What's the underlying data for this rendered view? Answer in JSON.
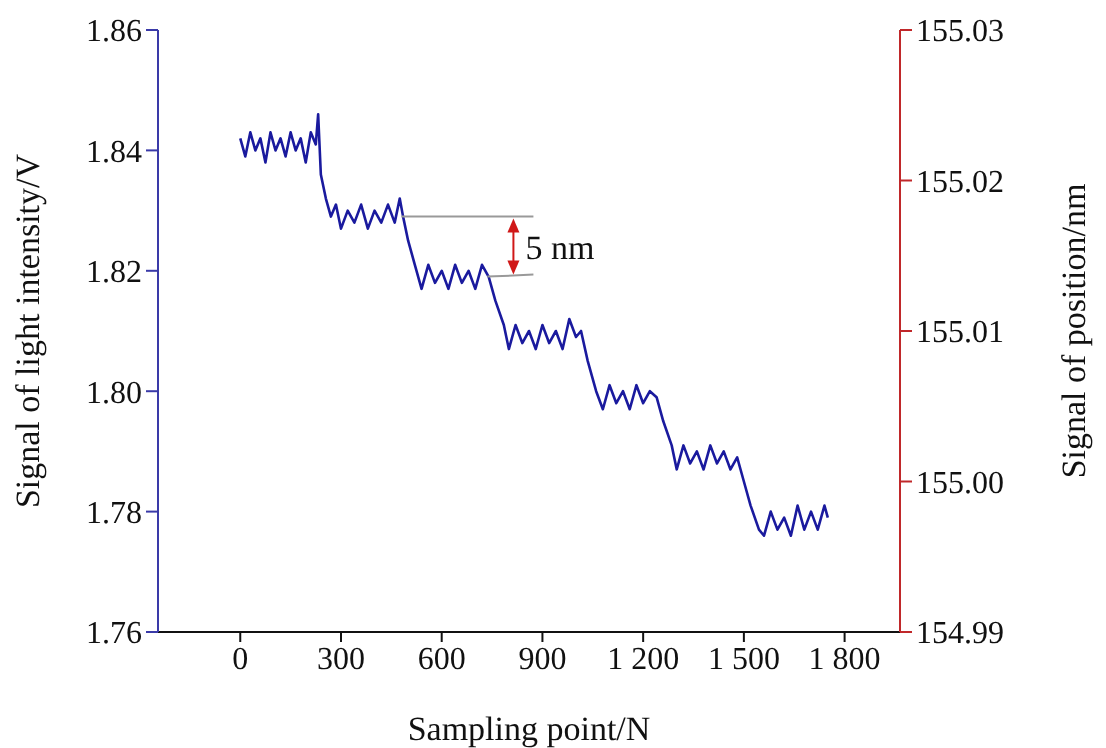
{
  "chart_data": {
    "type": "line",
    "xlabel": "Sampling point/N",
    "ylabel": "Signal of light intensity/V",
    "y2label": "Signal of position/nm",
    "xlim": [
      -245,
      1965
    ],
    "xticks": [
      0,
      300,
      600,
      900,
      {
        "value": 1200,
        "label": "1 200"
      },
      {
        "value": 1500,
        "label": "1 500"
      },
      {
        "value": 1800,
        "label": "1 800"
      }
    ],
    "ylim": [
      1.76,
      1.86
    ],
    "yticks": [
      {
        "value": 1.76,
        "label": "1.76"
      },
      {
        "value": 1.78,
        "label": "1.78"
      },
      {
        "value": 1.8,
        "label": "1.80"
      },
      {
        "value": 1.82,
        "label": "1.82"
      },
      {
        "value": 1.84,
        "label": "1.84"
      },
      {
        "value": 1.86,
        "label": "1.86"
      }
    ],
    "y2lim": [
      154.99,
      155.03
    ],
    "y2ticks": [
      154.99,
      {
        "value": 155,
        "label": "155.00"
      },
      {
        "value": 155.01,
        "label": "155.01"
      },
      {
        "value": 155.02,
        "label": "155.02"
      },
      {
        "value": 155.03,
        "label": "155.03"
      }
    ],
    "annotations": [
      {
        "text": "5 nm",
        "x": 480,
        "y": 1.829
      }
    ],
    "grid": false,
    "legend": false,
    "marker": "none",
    "line_style": "solid",
    "series": [
      {
        "color": "#1a1a9e",
        "x": [
          0,
          15,
          30,
          45,
          60,
          75,
          90,
          105,
          120,
          135,
          150,
          165,
          180,
          195,
          210,
          225,
          232,
          240,
          255,
          270,
          285,
          300,
          320,
          340,
          360,
          380,
          400,
          420,
          440,
          460,
          475,
          485,
          500,
          520,
          540,
          560,
          580,
          600,
          620,
          640,
          660,
          680,
          700,
          720,
          740,
          760,
          785,
          800,
          820,
          840,
          860,
          880,
          900,
          920,
          940,
          960,
          980,
          1000,
          1015,
          1035,
          1060,
          1080,
          1100,
          1120,
          1140,
          1160,
          1180,
          1200,
          1220,
          1240,
          1260,
          1285,
          1300,
          1320,
          1340,
          1360,
          1380,
          1400,
          1420,
          1440,
          1460,
          1480,
          1500,
          1520,
          1545,
          1560,
          1580,
          1600,
          1620,
          1640,
          1660,
          1680,
          1700,
          1720,
          1740,
          1750
        ],
        "values": [
          1.842,
          1.839,
          1.843,
          1.84,
          1.842,
          1.838,
          1.843,
          1.84,
          1.842,
          1.839,
          1.843,
          1.84,
          1.842,
          1.838,
          1.843,
          1.841,
          1.846,
          1.836,
          1.832,
          1.829,
          1.831,
          1.827,
          1.83,
          1.828,
          1.831,
          1.827,
          1.83,
          1.828,
          1.831,
          1.828,
          1.832,
          1.829,
          1.825,
          1.821,
          1.817,
          1.821,
          1.818,
          1.82,
          1.817,
          1.821,
          1.818,
          1.82,
          1.817,
          1.821,
          1.819,
          1.815,
          1.811,
          1.807,
          1.811,
          1.808,
          1.81,
          1.807,
          1.811,
          1.808,
          1.81,
          1.807,
          1.812,
          1.809,
          1.81,
          1.805,
          1.8,
          1.797,
          1.801,
          1.798,
          1.8,
          1.797,
          1.801,
          1.798,
          1.8,
          1.799,
          1.795,
          1.791,
          1.787,
          1.791,
          1.788,
          1.79,
          1.787,
          1.791,
          1.788,
          1.79,
          1.787,
          1.789,
          1.785,
          1.781,
          1.777,
          1.776,
          1.78,
          1.777,
          1.779,
          1.776,
          1.781,
          1.777,
          1.78,
          1.777,
          1.781,
          1.779
        ]
      }
    ]
  }
}
